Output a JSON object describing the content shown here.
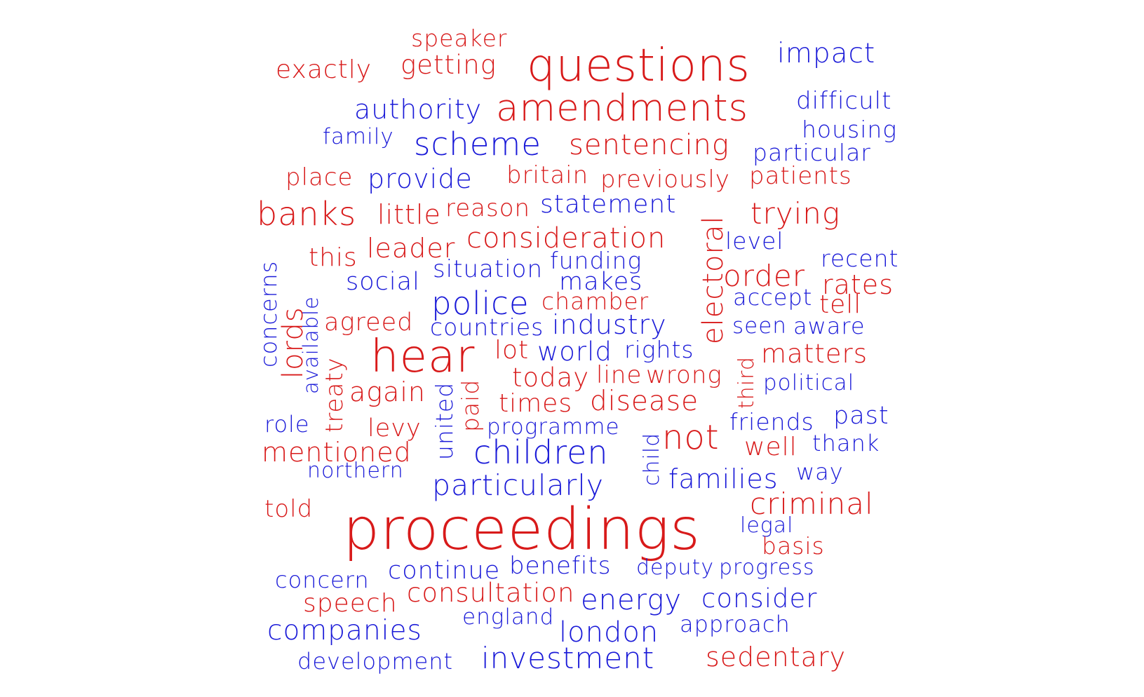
{
  "colors": {
    "red": "#d81a1a",
    "blue": "#1a1ad8",
    "background": "#ffffff"
  },
  "words": [
    {
      "text": "speaker",
      "color": "red"
    },
    {
      "text": "exactly",
      "color": "red"
    },
    {
      "text": "getting",
      "color": "red"
    },
    {
      "text": "questions",
      "color": "red"
    },
    {
      "text": "impact",
      "color": "blue"
    },
    {
      "text": "authority",
      "color": "blue"
    },
    {
      "text": "amendments",
      "color": "red"
    },
    {
      "text": "difficult",
      "color": "blue"
    },
    {
      "text": "family",
      "color": "blue"
    },
    {
      "text": "scheme",
      "color": "blue"
    },
    {
      "text": "sentencing",
      "color": "red"
    },
    {
      "text": "housing",
      "color": "blue"
    },
    {
      "text": "particular",
      "color": "blue"
    },
    {
      "text": "place",
      "color": "red"
    },
    {
      "text": "provide",
      "color": "blue"
    },
    {
      "text": "britain",
      "color": "red"
    },
    {
      "text": "previously",
      "color": "red"
    },
    {
      "text": "patients",
      "color": "red"
    },
    {
      "text": "banks",
      "color": "red"
    },
    {
      "text": "little",
      "color": "red"
    },
    {
      "text": "reason",
      "color": "red"
    },
    {
      "text": "statement",
      "color": "blue"
    },
    {
      "text": "trying",
      "color": "red"
    },
    {
      "text": "electoral",
      "color": "red"
    },
    {
      "text": "leader",
      "color": "red"
    },
    {
      "text": "consideration",
      "color": "red"
    },
    {
      "text": "level",
      "color": "blue"
    },
    {
      "text": "concerns",
      "color": "blue"
    },
    {
      "text": "this",
      "color": "red"
    },
    {
      "text": "situation",
      "color": "blue"
    },
    {
      "text": "funding",
      "color": "blue"
    },
    {
      "text": "recent",
      "color": "blue"
    },
    {
      "text": "order",
      "color": "red"
    },
    {
      "text": "social",
      "color": "blue"
    },
    {
      "text": "makes",
      "color": "blue"
    },
    {
      "text": "rates",
      "color": "red"
    },
    {
      "text": "available",
      "color": "blue"
    },
    {
      "text": "lords",
      "color": "red"
    },
    {
      "text": "police",
      "color": "blue"
    },
    {
      "text": "chamber",
      "color": "red"
    },
    {
      "text": "accept",
      "color": "blue"
    },
    {
      "text": "tell",
      "color": "red"
    },
    {
      "text": "agreed",
      "color": "red"
    },
    {
      "text": "countries",
      "color": "blue"
    },
    {
      "text": "industry",
      "color": "blue"
    },
    {
      "text": "seen",
      "color": "blue"
    },
    {
      "text": "aware",
      "color": "blue"
    },
    {
      "text": "hear",
      "color": "red"
    },
    {
      "text": "lot",
      "color": "red"
    },
    {
      "text": "world",
      "color": "blue"
    },
    {
      "text": "rights",
      "color": "blue"
    },
    {
      "text": "third",
      "color": "red"
    },
    {
      "text": "matters",
      "color": "red"
    },
    {
      "text": "treaty",
      "color": "red"
    },
    {
      "text": "today",
      "color": "red"
    },
    {
      "text": "line",
      "color": "red"
    },
    {
      "text": "wrong",
      "color": "red"
    },
    {
      "text": "political",
      "color": "blue"
    },
    {
      "text": "again",
      "color": "red"
    },
    {
      "text": "united",
      "color": "blue"
    },
    {
      "text": "paid",
      "color": "red"
    },
    {
      "text": "times",
      "color": "red"
    },
    {
      "text": "disease",
      "color": "red"
    },
    {
      "text": "role",
      "color": "blue"
    },
    {
      "text": "levy",
      "color": "red"
    },
    {
      "text": "programme",
      "color": "blue"
    },
    {
      "text": "friends",
      "color": "blue"
    },
    {
      "text": "past",
      "color": "blue"
    },
    {
      "text": "not",
      "color": "red"
    },
    {
      "text": "mentioned",
      "color": "red"
    },
    {
      "text": "children",
      "color": "blue"
    },
    {
      "text": "child",
      "color": "blue"
    },
    {
      "text": "well",
      "color": "red"
    },
    {
      "text": "thank",
      "color": "blue"
    },
    {
      "text": "northern",
      "color": "blue"
    },
    {
      "text": "way",
      "color": "blue"
    },
    {
      "text": "families",
      "color": "blue"
    },
    {
      "text": "particularly",
      "color": "blue"
    },
    {
      "text": "told",
      "color": "red"
    },
    {
      "text": "criminal",
      "color": "red"
    },
    {
      "text": "proceedings",
      "color": "red"
    },
    {
      "text": "legal",
      "color": "blue"
    },
    {
      "text": "basis",
      "color": "red"
    },
    {
      "text": "concern",
      "color": "blue"
    },
    {
      "text": "continue",
      "color": "blue"
    },
    {
      "text": "benefits",
      "color": "blue"
    },
    {
      "text": "deputy",
      "color": "blue"
    },
    {
      "text": "progress",
      "color": "blue"
    },
    {
      "text": "speech",
      "color": "red"
    },
    {
      "text": "consultation",
      "color": "red"
    },
    {
      "text": "energy",
      "color": "blue"
    },
    {
      "text": "consider",
      "color": "blue"
    },
    {
      "text": "england",
      "color": "blue"
    },
    {
      "text": "approach",
      "color": "blue"
    },
    {
      "text": "companies",
      "color": "blue"
    },
    {
      "text": "london",
      "color": "blue"
    },
    {
      "text": "development",
      "color": "blue"
    },
    {
      "text": "investment",
      "color": "blue"
    },
    {
      "text": "sedentary",
      "color": "red"
    }
  ]
}
